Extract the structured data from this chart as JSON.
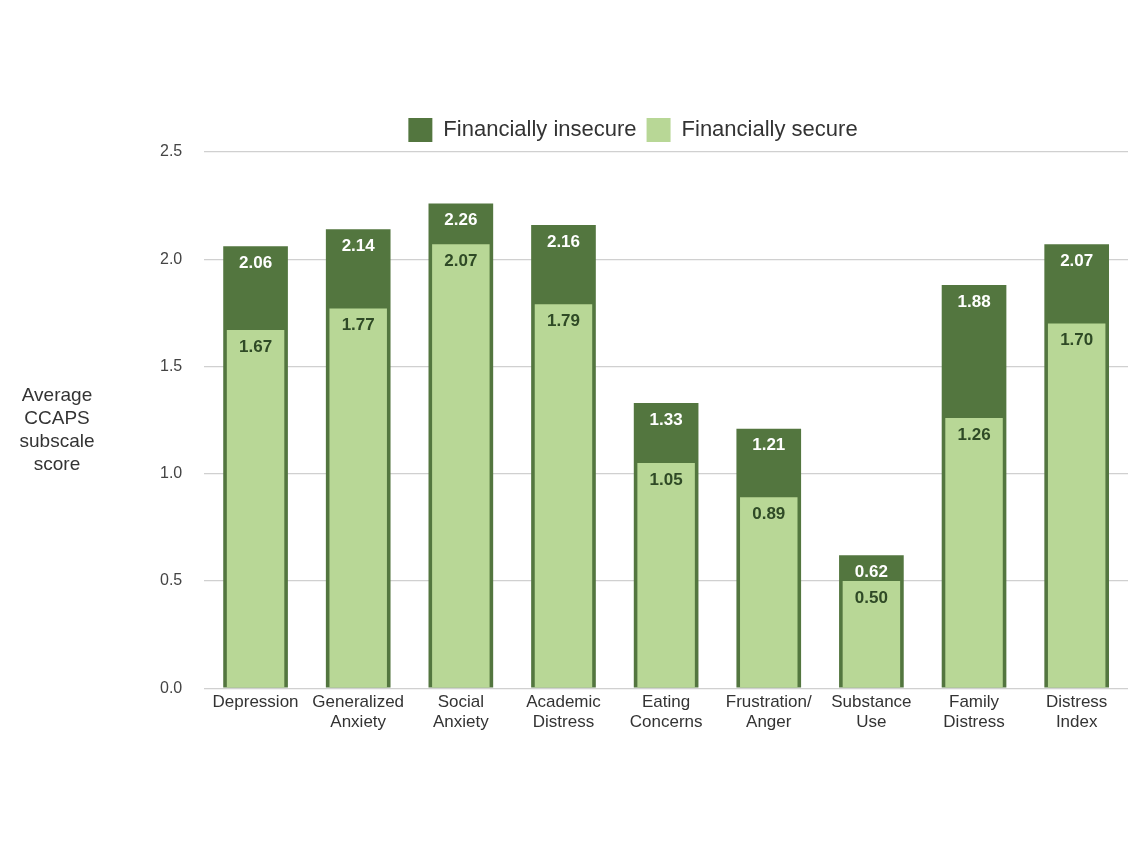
{
  "chart_data": {
    "type": "bar",
    "ylabel": "Average CCAPS subscale score",
    "categories": [
      "Depression",
      "Generalized Anxiety",
      "Social Anxiety",
      "Academic Distress",
      "Eating Concerns",
      "Frustration/ Anger",
      "Substance Use",
      "Family Distress",
      "Distress Index"
    ],
    "series": [
      {
        "name": "Financially insecure",
        "color": "#53763f",
        "values": [
          2.06,
          2.14,
          2.26,
          2.16,
          1.33,
          1.21,
          0.62,
          1.88,
          2.07
        ],
        "value_labels": [
          "2.06",
          "2.14",
          "2.26",
          "2.16",
          "1.33",
          "1.21",
          "0.62",
          "1.88",
          "2.07"
        ]
      },
      {
        "name": "Financially secure",
        "color": "#b8d796",
        "values": [
          1.67,
          1.77,
          2.07,
          1.79,
          1.05,
          0.89,
          0.5,
          1.26,
          1.7
        ],
        "value_labels": [
          "1.67",
          "1.77",
          "2.07",
          "1.79",
          "1.05",
          "0.89",
          "0.50",
          "1.26",
          "1.70"
        ]
      }
    ],
    "ylim": [
      0,
      2.5
    ],
    "yticks": [
      {
        "value": 0,
        "label": "0.0"
      },
      0.5,
      {
        "value": 1,
        "label": "1.0"
      },
      1.5,
      {
        "value": 2,
        "label": "2.0"
      },
      2.5
    ],
    "grid": "y",
    "legend": "top"
  }
}
